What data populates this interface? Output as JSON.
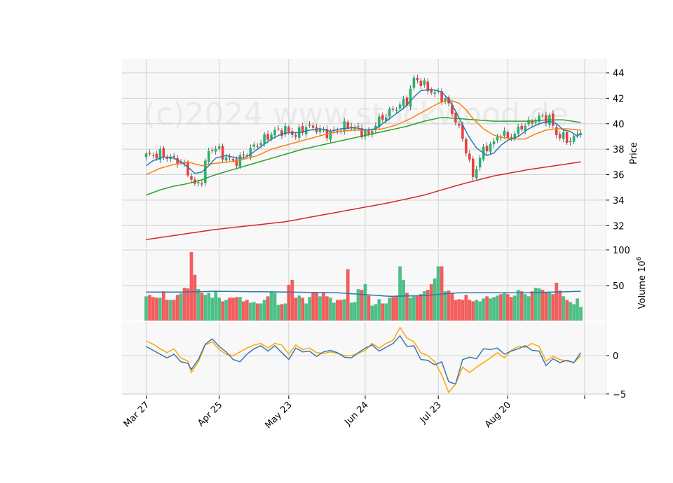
{
  "chart_data": {
    "type": "candlestick",
    "watermark": "(c)2024 www.stockwood.de",
    "x_tick_labels": [
      "Mar 27",
      "Apr 25",
      "May 23",
      "Jun 24",
      "Jul 23",
      "Aug 20"
    ],
    "x_tick_days": [
      0,
      21,
      41,
      63,
      84,
      104
    ],
    "n_days": 126,
    "colors": {
      "up": "#26b36e",
      "down": "#f23b3b",
      "ma_short": "#2a78b4",
      "ma_mid": "#ff7f0e",
      "ma_long": "#2ca02c",
      "ma_200": "#d62728",
      "volume_avg": "#2a78b4",
      "osc_1": "#3a78b0",
      "osc_2": "#ffa500",
      "panel_bg": "#f8f8f8",
      "grid": "#d0d0d0"
    },
    "price_panel": {
      "ylabel": "Price",
      "ylim": [
        30.2,
        45.1
      ],
      "yticks": [
        32,
        34,
        36,
        38,
        40,
        42,
        44
      ],
      "close_keyframes": [
        [
          0,
          37.5
        ],
        [
          4,
          37.6
        ],
        [
          7,
          37.3
        ],
        [
          10,
          37.0
        ],
        [
          12,
          36.2
        ],
        [
          14,
          35.1
        ],
        [
          16,
          35.6
        ],
        [
          18,
          37.9
        ],
        [
          20,
          38.1
        ],
        [
          23,
          37.3
        ],
        [
          26,
          37.0
        ],
        [
          28,
          37.5
        ],
        [
          31,
          38.2
        ],
        [
          34,
          38.8
        ],
        [
          37,
          39.4
        ],
        [
          40,
          39.5
        ],
        [
          43,
          39.1
        ],
        [
          46,
          39.8
        ],
        [
          49,
          39.6
        ],
        [
          52,
          39.2
        ],
        [
          55,
          39.5
        ],
        [
          58,
          39.9
        ],
        [
          61,
          39.5
        ],
        [
          64,
          39.1
        ],
        [
          66,
          40.0
        ],
        [
          69,
          40.7
        ],
        [
          72,
          41.3
        ],
        [
          75,
          41.8
        ],
        [
          77,
          43.5
        ],
        [
          79,
          43.3
        ],
        [
          81,
          42.7
        ],
        [
          84,
          42.3
        ],
        [
          86,
          41.9
        ],
        [
          88,
          40.9
        ],
        [
          90,
          39.6
        ],
        [
          92,
          38.0
        ],
        [
          94,
          35.8
        ],
        [
          96,
          37.4
        ],
        [
          98,
          38.2
        ],
        [
          100,
          38.5
        ],
        [
          102,
          39.3
        ],
        [
          104,
          38.9
        ],
        [
          106,
          39.2
        ],
        [
          108,
          39.8
        ],
        [
          110,
          40.0
        ],
        [
          113,
          40.5
        ],
        [
          116,
          40.4
        ],
        [
          118,
          39.2
        ],
        [
          120,
          38.9
        ],
        [
          122,
          38.7
        ],
        [
          124,
          39.1
        ],
        [
          125,
          39.6
        ]
      ],
      "ma_short_points": [
        [
          0,
          36.7
        ],
        [
          2,
          37.1
        ],
        [
          5,
          37.4
        ],
        [
          8,
          37.3
        ],
        [
          10,
          37.0
        ],
        [
          12,
          36.6
        ],
        [
          14,
          36.1
        ],
        [
          16,
          36.2
        ],
        [
          18,
          36.7
        ],
        [
          20,
          37.3
        ],
        [
          23,
          37.5
        ],
        [
          26,
          37.3
        ],
        [
          28,
          37.3
        ],
        [
          30,
          37.6
        ],
        [
          33,
          38.2
        ],
        [
          36,
          38.8
        ],
        [
          39,
          39.2
        ],
        [
          41,
          39.3
        ],
        [
          44,
          39.3
        ],
        [
          47,
          39.5
        ],
        [
          50,
          39.6
        ],
        [
          53,
          39.4
        ],
        [
          56,
          39.6
        ],
        [
          60,
          39.7
        ],
        [
          63,
          39.5
        ],
        [
          66,
          39.6
        ],
        [
          68,
          40.0
        ],
        [
          71,
          40.6
        ],
        [
          74,
          41.2
        ],
        [
          77,
          42.1
        ],
        [
          79,
          42.6
        ],
        [
          82,
          42.7
        ],
        [
          85,
          42.5
        ],
        [
          87,
          41.9
        ],
        [
          89,
          41.0
        ],
        [
          91,
          39.9
        ],
        [
          93,
          38.9
        ],
        [
          95,
          38.1
        ],
        [
          98,
          37.5
        ],
        [
          100,
          37.7
        ],
        [
          102,
          38.3
        ],
        [
          104,
          38.7
        ],
        [
          107,
          39.0
        ],
        [
          110,
          39.6
        ],
        [
          113,
          40.0
        ],
        [
          116,
          40.2
        ],
        [
          118,
          40.0
        ],
        [
          120,
          39.5
        ],
        [
          122,
          39.4
        ],
        [
          124,
          39.0
        ],
        [
          125,
          39.3
        ]
      ],
      "ma_mid_points": [
        [
          0,
          36.0
        ],
        [
          4,
          36.5
        ],
        [
          8,
          36.8
        ],
        [
          12,
          37.0
        ],
        [
          16,
          36.7
        ],
        [
          20,
          36.9
        ],
        [
          24,
          37.0
        ],
        [
          28,
          37.2
        ],
        [
          32,
          37.5
        ],
        [
          36,
          38.0
        ],
        [
          40,
          38.3
        ],
        [
          44,
          38.6
        ],
        [
          48,
          38.9
        ],
        [
          52,
          39.2
        ],
        [
          56,
          39.4
        ],
        [
          60,
          39.5
        ],
        [
          64,
          39.5
        ],
        [
          68,
          39.6
        ],
        [
          72,
          39.9
        ],
        [
          76,
          40.4
        ],
        [
          80,
          41.0
        ],
        [
          84,
          41.6
        ],
        [
          87,
          41.9
        ],
        [
          90,
          41.6
        ],
        [
          92,
          41.1
        ],
        [
          94,
          40.4
        ],
        [
          97,
          39.6
        ],
        [
          100,
          39.1
        ],
        [
          103,
          38.9
        ],
        [
          106,
          38.8
        ],
        [
          109,
          38.8
        ],
        [
          112,
          39.2
        ],
        [
          115,
          39.5
        ],
        [
          118,
          39.6
        ],
        [
          121,
          39.6
        ],
        [
          125,
          39.5
        ]
      ],
      "ma_long_points": [
        [
          0,
          34.4
        ],
        [
          4,
          34.8
        ],
        [
          8,
          35.1
        ],
        [
          12,
          35.3
        ],
        [
          16,
          35.6
        ],
        [
          20,
          36.0
        ],
        [
          25,
          36.4
        ],
        [
          30,
          36.8
        ],
        [
          35,
          37.2
        ],
        [
          40,
          37.6
        ],
        [
          45,
          38.0
        ],
        [
          50,
          38.3
        ],
        [
          55,
          38.6
        ],
        [
          60,
          38.9
        ],
        [
          65,
          39.2
        ],
        [
          70,
          39.5
        ],
        [
          75,
          39.8
        ],
        [
          80,
          40.2
        ],
        [
          85,
          40.5
        ],
        [
          90,
          40.4
        ],
        [
          95,
          40.3
        ],
        [
          100,
          40.2
        ],
        [
          105,
          40.2
        ],
        [
          110,
          40.2
        ],
        [
          115,
          40.3
        ],
        [
          120,
          40.3
        ],
        [
          125,
          40.1
        ]
      ],
      "ma_200_points": [
        [
          0,
          30.9
        ],
        [
          10,
          31.3
        ],
        [
          20,
          31.7
        ],
        [
          30,
          32.0
        ],
        [
          40,
          32.3
        ],
        [
          50,
          32.8
        ],
        [
          60,
          33.3
        ],
        [
          70,
          33.8
        ],
        [
          80,
          34.4
        ],
        [
          90,
          35.2
        ],
        [
          100,
          35.9
        ],
        [
          110,
          36.4
        ],
        [
          125,
          37.0
        ]
      ]
    },
    "volume_panel": {
      "ylabel": "Volume  10",
      "ylabel_exponent": "6",
      "ylim": [
        1,
        100
      ],
      "yticks": [
        50,
        100
      ],
      "values": [
        35,
        37,
        34,
        33,
        33,
        42,
        30,
        30,
        30,
        37,
        39,
        47,
        46,
        97,
        65,
        45,
        40,
        37,
        40,
        33,
        43,
        33,
        28,
        30,
        33,
        33,
        34,
        34,
        28,
        30,
        26,
        27,
        25,
        25,
        30,
        35,
        42,
        40,
        23,
        24,
        25,
        51,
        58,
        33,
        36,
        33,
        25,
        34,
        40,
        41,
        35,
        40,
        35,
        33,
        26,
        30,
        30,
        31,
        73,
        26,
        27,
        45,
        44,
        52,
        36,
        22,
        24,
        31,
        25,
        25,
        33,
        34,
        36,
        77,
        58,
        40,
        33,
        35,
        36,
        38,
        42,
        44,
        52,
        60,
        77,
        77,
        42,
        43,
        40,
        30,
        31,
        30,
        37,
        30,
        28,
        30,
        28,
        32,
        35,
        32,
        34,
        36,
        38,
        40,
        38,
        34,
        36,
        44,
        42,
        38,
        35,
        42,
        47,
        46,
        44,
        41,
        40,
        38,
        54,
        43,
        35,
        30,
        27,
        24,
        32,
        20
      ],
      "avg_points": [
        [
          0,
          41
        ],
        [
          10,
          41
        ],
        [
          20,
          42
        ],
        [
          40,
          41
        ],
        [
          55,
          40
        ],
        [
          70,
          35
        ],
        [
          80,
          36
        ],
        [
          90,
          40
        ],
        [
          100,
          40
        ],
        [
          110,
          40
        ],
        [
          125,
          42
        ]
      ]
    },
    "osc_panel": {
      "ylim": [
        -5.2,
        4.4
      ],
      "yticks": [
        -5,
        0
      ],
      "line1_points": [
        [
          0,
          1.2
        ],
        [
          2,
          0.7
        ],
        [
          4,
          0.2
        ],
        [
          6,
          -0.3
        ],
        [
          8,
          0.2
        ],
        [
          10,
          -0.8
        ],
        [
          12,
          -1.0
        ],
        [
          13,
          -1.8
        ],
        [
          15,
          -0.5
        ],
        [
          17,
          1.5
        ],
        [
          19,
          2.2
        ],
        [
          21,
          1.2
        ],
        [
          23,
          0.5
        ],
        [
          25,
          -0.5
        ],
        [
          27,
          -0.8
        ],
        [
          29,
          0.2
        ],
        [
          31,
          0.9
        ],
        [
          33,
          1.3
        ],
        [
          35,
          0.6
        ],
        [
          37,
          1.3
        ],
        [
          39,
          0.4
        ],
        [
          41,
          -0.5
        ],
        [
          43,
          1.0
        ],
        [
          45,
          0.5
        ],
        [
          47,
          0.6
        ],
        [
          49,
          -0.1
        ],
        [
          51,
          0.5
        ],
        [
          53,
          0.7
        ],
        [
          55,
          0.4
        ],
        [
          57,
          -0.2
        ],
        [
          59,
          -0.3
        ],
        [
          61,
          0.4
        ],
        [
          63,
          1.0
        ],
        [
          65,
          1.4
        ],
        [
          67,
          0.6
        ],
        [
          69,
          1.1
        ],
        [
          71,
          1.6
        ],
        [
          73,
          2.6
        ],
        [
          75,
          1.2
        ],
        [
          77,
          1.3
        ],
        [
          79,
          -0.5
        ],
        [
          81,
          -0.6
        ],
        [
          83,
          -1.2
        ],
        [
          85,
          -0.8
        ],
        [
          87,
          -3.4
        ],
        [
          89,
          -3.7
        ],
        [
          91,
          -0.5
        ],
        [
          93,
          -0.2
        ],
        [
          95,
          -0.4
        ],
        [
          97,
          0.9
        ],
        [
          99,
          0.8
        ],
        [
          101,
          1.0
        ],
        [
          103,
          0.2
        ],
        [
          105,
          0.6
        ],
        [
          107,
          0.9
        ],
        [
          109,
          1.3
        ],
        [
          111,
          0.7
        ],
        [
          113,
          0.6
        ],
        [
          115,
          -1.3
        ],
        [
          117,
          -0.4
        ],
        [
          119,
          -0.9
        ],
        [
          121,
          -0.6
        ],
        [
          123,
          -0.9
        ],
        [
          125,
          0.4
        ]
      ],
      "line2_points": [
        [
          0,
          1.9
        ],
        [
          2,
          1.5
        ],
        [
          4,
          0.9
        ],
        [
          6,
          0.4
        ],
        [
          8,
          0.9
        ],
        [
          10,
          -0.3
        ],
        [
          12,
          -0.7
        ],
        [
          13,
          -2.2
        ],
        [
          15,
          -0.8
        ],
        [
          17,
          1.4
        ],
        [
          19,
          1.8
        ],
        [
          21,
          0.8
        ],
        [
          23,
          0.2
        ],
        [
          25,
          0.0
        ],
        [
          27,
          0.5
        ],
        [
          29,
          1.0
        ],
        [
          31,
          1.4
        ],
        [
          33,
          1.6
        ],
        [
          35,
          1.0
        ],
        [
          37,
          1.6
        ],
        [
          39,
          1.4
        ],
        [
          41,
          0.2
        ],
        [
          43,
          1.4
        ],
        [
          45,
          0.8
        ],
        [
          47,
          1.0
        ],
        [
          49,
          0.4
        ],
        [
          51,
          0.3
        ],
        [
          53,
          0.5
        ],
        [
          55,
          0.3
        ],
        [
          57,
          0.0
        ],
        [
          59,
          0.0
        ],
        [
          61,
          0.3
        ],
        [
          63,
          0.7
        ],
        [
          65,
          1.6
        ],
        [
          67,
          1.0
        ],
        [
          69,
          1.6
        ],
        [
          71,
          2.0
        ],
        [
          73,
          3.7
        ],
        [
          75,
          2.3
        ],
        [
          77,
          1.8
        ],
        [
          79,
          0.4
        ],
        [
          81,
          0.0
        ],
        [
          83,
          -0.8
        ],
        [
          85,
          -2.5
        ],
        [
          87,
          -4.8
        ],
        [
          89,
          -3.7
        ],
        [
          91,
          -1.5
        ],
        [
          93,
          -2.2
        ],
        [
          95,
          -1.5
        ],
        [
          97,
          -0.9
        ],
        [
          99,
          -0.3
        ],
        [
          101,
          0.4
        ],
        [
          103,
          -0.3
        ],
        [
          105,
          0.7
        ],
        [
          107,
          1.2
        ],
        [
          109,
          1.1
        ],
        [
          111,
          1.6
        ],
        [
          113,
          1.2
        ],
        [
          115,
          -0.7
        ],
        [
          117,
          -0.1
        ],
        [
          119,
          -0.5
        ],
        [
          121,
          -0.7
        ],
        [
          123,
          -0.9
        ],
        [
          125,
          0.0
        ]
      ]
    }
  }
}
